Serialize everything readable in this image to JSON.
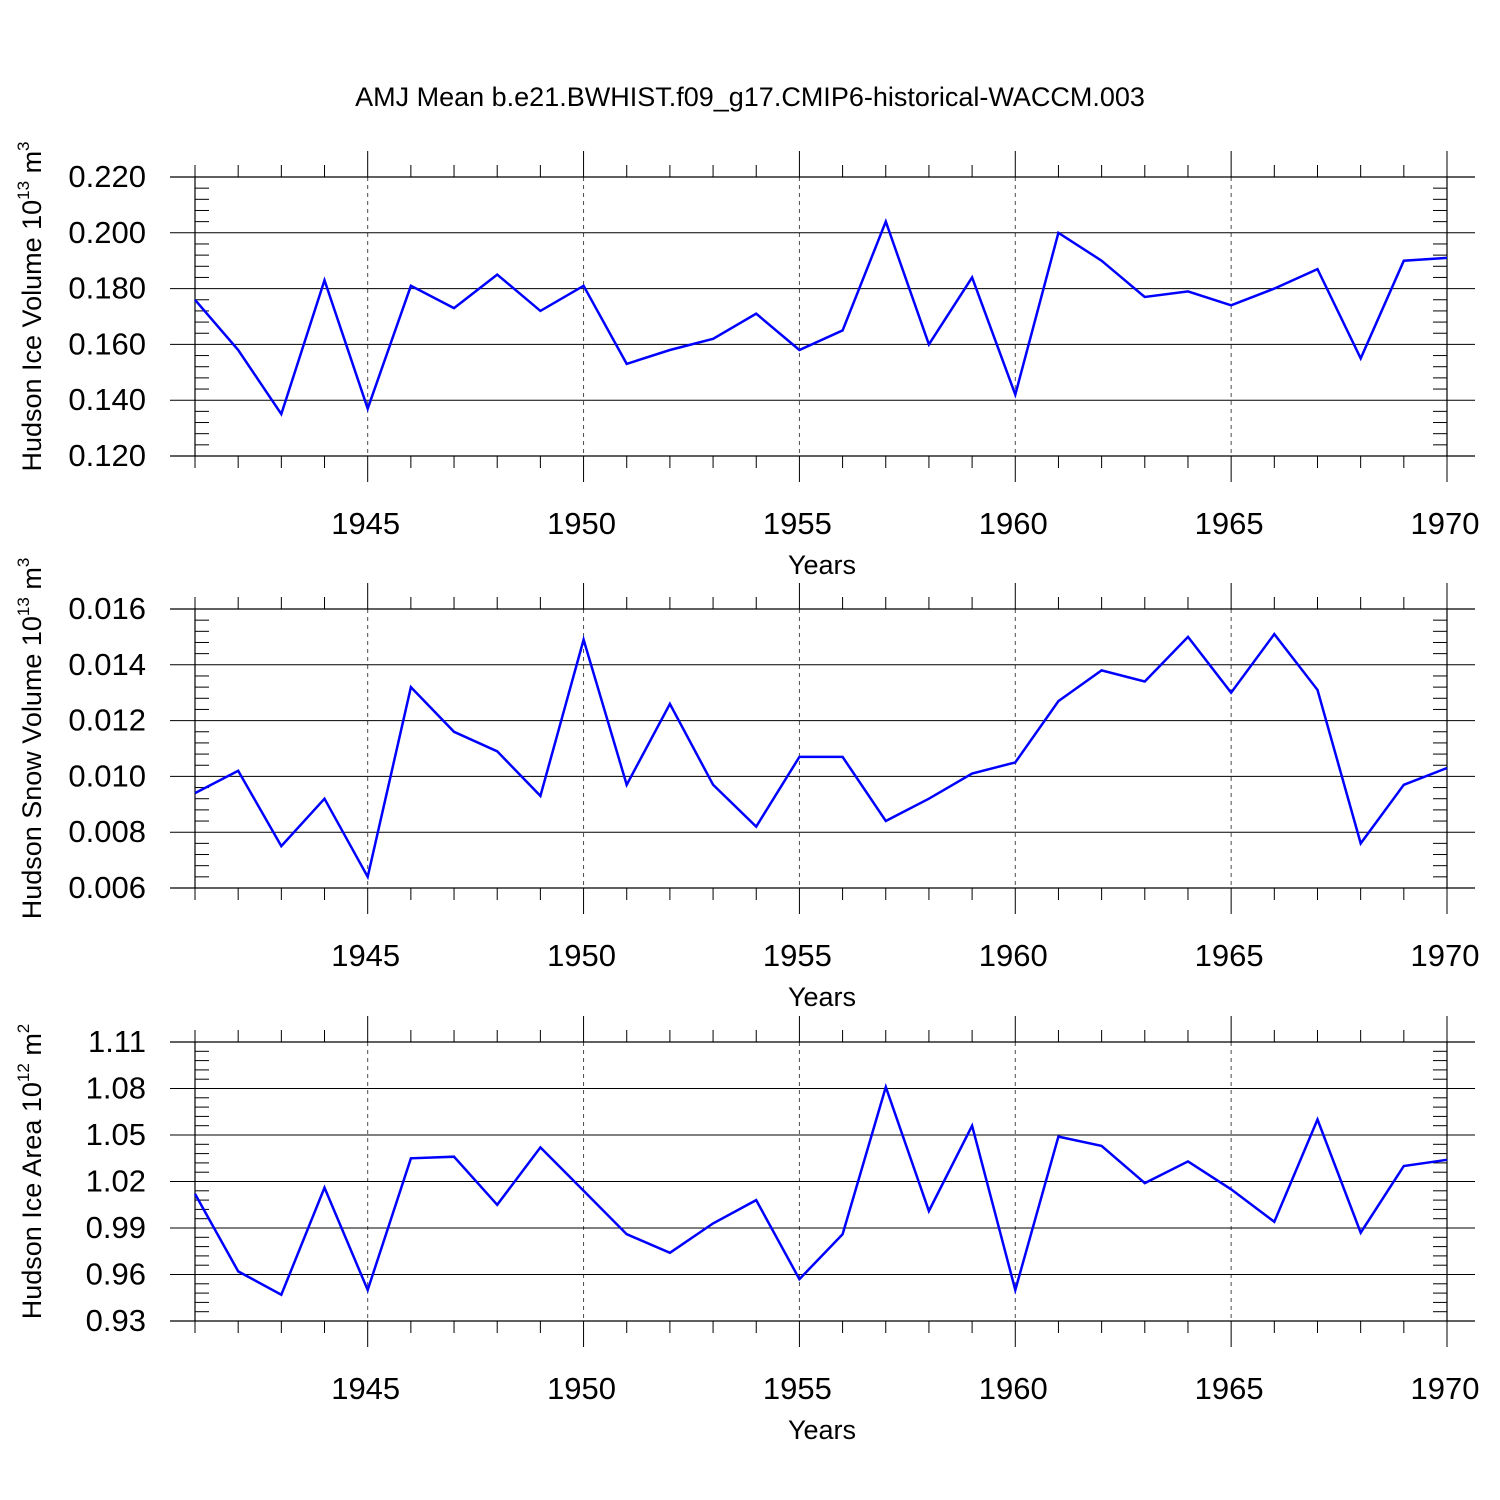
{
  "title": "AMJ Mean b.e21.BWHIST.f09_g17.CMIP6-historical-WACCM.003",
  "colors": {
    "line": "#0000ff",
    "axis": "#000000",
    "grid": "#000000"
  },
  "chart_data": [
    {
      "type": "line",
      "ylabel": {
        "main": "Hudson Ice Volume 10",
        "sup": "13",
        "unit": " m",
        "unit_sup": "3"
      },
      "xlabel": "Years",
      "xlim": [
        1941,
        1970
      ],
      "ylim": [
        0.12,
        0.22
      ],
      "yticks": [
        "0.120",
        "0.140",
        "0.160",
        "0.180",
        "0.200",
        "0.220"
      ],
      "xticks": [
        "1945",
        "1950",
        "1955",
        "1960",
        "1965",
        "1970"
      ],
      "grid_x": true,
      "series": [
        {
          "x": [
            1941,
            1942,
            1943,
            1944,
            1945,
            1946,
            1947,
            1948,
            1949,
            1950,
            1951,
            1952,
            1953,
            1954,
            1955,
            1956,
            1957,
            1958,
            1959,
            1960,
            1961,
            1962,
            1963,
            1964,
            1965,
            1966,
            1967,
            1968,
            1969,
            1970
          ],
          "values": [
            0.176,
            0.158,
            0.135,
            0.183,
            0.137,
            0.181,
            0.173,
            0.185,
            0.172,
            0.181,
            0.153,
            0.158,
            0.162,
            0.171,
            0.158,
            0.165,
            0.204,
            0.16,
            0.184,
            0.142,
            0.2,
            0.19,
            0.177,
            0.179,
            0.174,
            0.18,
            0.187,
            0.155,
            0.19,
            0.191
          ]
        }
      ]
    },
    {
      "type": "line",
      "ylabel": {
        "main": "Hudson Snow Volume 10",
        "sup": "13",
        "unit": " m",
        "unit_sup": "3"
      },
      "xlabel": "Years",
      "xlim": [
        1941,
        1970
      ],
      "ylim": [
        0.006,
        0.016
      ],
      "yticks": [
        "0.006",
        "0.008",
        "0.010",
        "0.012",
        "0.014",
        "0.016"
      ],
      "xticks": [
        "1945",
        "1950",
        "1955",
        "1960",
        "1965",
        "1970"
      ],
      "grid_x": true,
      "series": [
        {
          "x": [
            1941,
            1942,
            1943,
            1944,
            1945,
            1946,
            1947,
            1948,
            1949,
            1950,
            1951,
            1952,
            1953,
            1954,
            1955,
            1956,
            1957,
            1958,
            1959,
            1960,
            1961,
            1962,
            1963,
            1964,
            1965,
            1966,
            1967,
            1968,
            1969,
            1970
          ],
          "values": [
            0.0094,
            0.0102,
            0.0075,
            0.0092,
            0.0064,
            0.0132,
            0.0116,
            0.0109,
            0.0093,
            0.0149,
            0.0097,
            0.0126,
            0.0097,
            0.0082,
            0.0107,
            0.0107,
            0.0084,
            0.0092,
            0.0101,
            0.0105,
            0.0127,
            0.0138,
            0.0134,
            0.015,
            0.013,
            0.0151,
            0.0131,
            0.0076,
            0.0097,
            0.0103
          ]
        }
      ]
    },
    {
      "type": "line",
      "ylabel": {
        "main": "Hudson Ice Area 10",
        "sup": "12",
        "unit": " m",
        "unit_sup": "2"
      },
      "xlabel": "Years",
      "xlim": [
        1941,
        1970
      ],
      "ylim": [
        0.93,
        1.11
      ],
      "yticks": [
        "0.93",
        "0.96",
        "0.99",
        "1.02",
        "1.05",
        "1.08",
        "1.11"
      ],
      "xticks": [
        "1945",
        "1950",
        "1955",
        "1960",
        "1965",
        "1970"
      ],
      "grid_x": true,
      "series": [
        {
          "x": [
            1941,
            1942,
            1943,
            1944,
            1945,
            1946,
            1947,
            1948,
            1949,
            1950,
            1951,
            1952,
            1953,
            1954,
            1955,
            1956,
            1957,
            1958,
            1959,
            1960,
            1961,
            1962,
            1963,
            1964,
            1965,
            1966,
            1967,
            1968,
            1969,
            1970
          ],
          "values": [
            1.012,
            0.962,
            0.947,
            1.016,
            0.95,
            1.035,
            1.036,
            1.005,
            1.042,
            1.014,
            0.986,
            0.974,
            0.993,
            1.008,
            0.957,
            0.986,
            1.081,
            1.001,
            1.056,
            0.95,
            1.049,
            1.043,
            1.019,
            1.033,
            1.015,
            0.994,
            1.06,
            0.987,
            1.03,
            1.034
          ]
        }
      ]
    }
  ]
}
